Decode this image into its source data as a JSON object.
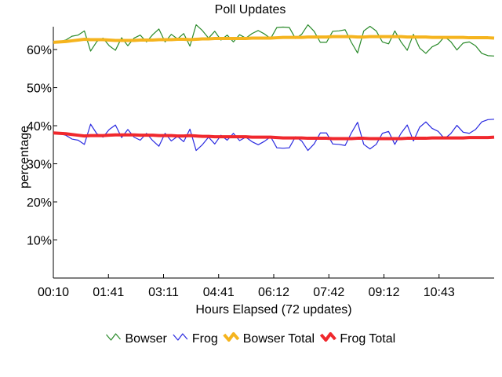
{
  "chart_data": {
    "type": "line",
    "title": "Poll Updates",
    "xlabel": "Hours Elapsed (72 updates)",
    "ylabel": "percentage",
    "x_tick_labels": [
      "00:10",
      "01:41",
      "03:11",
      "04:41",
      "06:12",
      "07:42",
      "09:12",
      "10:43"
    ],
    "y_ticks": [
      10,
      20,
      30,
      40,
      50,
      60
    ],
    "y_tick_suffix": "%",
    "ylim": [
      0,
      66
    ],
    "grid": false,
    "legend_position": "bottom",
    "update_count": 72,
    "series": [
      {
        "name": "Bowser",
        "color": "#2a8a2a",
        "style": "thin",
        "values": [
          62.0,
          62.1,
          62.5,
          63.5,
          63.8,
          64.9,
          59.6,
          62.1,
          63.0,
          61.0,
          59.8,
          63.1,
          61.0,
          63.0,
          63.8,
          62.0,
          63.9,
          65.4,
          62.0,
          64.0,
          62.8,
          64.2,
          60.9,
          66.5,
          65.0,
          63.0,
          64.8,
          62.5,
          63.8,
          62.0,
          63.9,
          63.0,
          64.2,
          65.0,
          64.1,
          62.9,
          65.8,
          65.9,
          65.8,
          62.9,
          64.0,
          66.5,
          64.8,
          61.9,
          61.9,
          64.8,
          64.9,
          65.2,
          61.9,
          59.1,
          64.9,
          66.1,
          64.9,
          62.0,
          61.5,
          64.9,
          62.0,
          59.8,
          64.0,
          60.4,
          59.0,
          60.7,
          61.5,
          63.4,
          62.1,
          59.9,
          61.7,
          62.0,
          61.0,
          59.0,
          58.4,
          58.3
        ]
      },
      {
        "name": "Frog",
        "color": "#2a2ae0",
        "style": "thin",
        "values": [
          38.0,
          37.9,
          37.5,
          36.5,
          36.2,
          35.1,
          40.4,
          37.9,
          37.0,
          39.0,
          40.2,
          36.9,
          39.0,
          37.0,
          36.2,
          38.0,
          36.1,
          34.6,
          38.0,
          36.0,
          37.2,
          35.8,
          39.1,
          33.5,
          35.0,
          37.0,
          35.2,
          37.5,
          36.2,
          38.0,
          36.1,
          37.0,
          35.8,
          35.0,
          35.9,
          37.1,
          34.2,
          34.1,
          34.2,
          37.1,
          36.0,
          33.5,
          35.2,
          38.1,
          38.1,
          35.2,
          35.1,
          34.8,
          38.1,
          40.9,
          35.1,
          33.9,
          35.1,
          38.0,
          38.5,
          35.1,
          38.0,
          40.2,
          36.0,
          39.6,
          41.0,
          39.3,
          38.5,
          36.6,
          37.9,
          40.1,
          38.3,
          38.0,
          39.0,
          41.0,
          41.6,
          41.7
        ]
      },
      {
        "name": "Bowser Total",
        "color": "#f5b41e",
        "style": "thick",
        "values": [
          61.9,
          62.0,
          62.1,
          62.3,
          62.5,
          62.7,
          62.6,
          62.6,
          62.6,
          62.5,
          62.4,
          62.4,
          62.4,
          62.4,
          62.5,
          62.5,
          62.5,
          62.6,
          62.6,
          62.6,
          62.7,
          62.7,
          62.6,
          62.7,
          62.8,
          62.8,
          62.9,
          62.9,
          62.9,
          62.9,
          62.9,
          62.9,
          63.0,
          63.0,
          63.0,
          63.0,
          63.1,
          63.2,
          63.2,
          63.2,
          63.2,
          63.3,
          63.3,
          63.3,
          63.3,
          63.4,
          63.4,
          63.4,
          63.4,
          63.3,
          63.3,
          63.4,
          63.4,
          63.4,
          63.4,
          63.4,
          63.4,
          63.3,
          63.3,
          63.3,
          63.3,
          63.2,
          63.2,
          63.2,
          63.2,
          63.2,
          63.2,
          63.1,
          63.1,
          63.1,
          63.1,
          63.0
        ]
      },
      {
        "name": "Frog Total",
        "color": "#f0282d",
        "style": "thick",
        "values": [
          38.1,
          38.0,
          37.9,
          37.7,
          37.5,
          37.3,
          37.4,
          37.4,
          37.4,
          37.5,
          37.6,
          37.6,
          37.6,
          37.6,
          37.5,
          37.5,
          37.5,
          37.4,
          37.4,
          37.4,
          37.3,
          37.3,
          37.4,
          37.3,
          37.2,
          37.2,
          37.1,
          37.1,
          37.1,
          37.1,
          37.1,
          37.1,
          37.0,
          37.0,
          37.0,
          37.0,
          36.9,
          36.8,
          36.8,
          36.8,
          36.8,
          36.7,
          36.7,
          36.7,
          36.7,
          36.6,
          36.6,
          36.6,
          36.6,
          36.7,
          36.7,
          36.6,
          36.6,
          36.6,
          36.6,
          36.6,
          36.6,
          36.7,
          36.7,
          36.7,
          36.7,
          36.8,
          36.8,
          36.8,
          36.8,
          36.8,
          36.8,
          36.9,
          36.9,
          36.9,
          36.9,
          37.0
        ]
      }
    ]
  }
}
